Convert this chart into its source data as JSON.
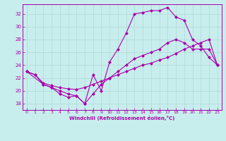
{
  "xlabel": "Windchill (Refroidissement éolien,°C)",
  "xlim": [
    -0.5,
    23.5
  ],
  "ylim": [
    17.0,
    33.5
  ],
  "xticks": [
    0,
    1,
    2,
    3,
    4,
    5,
    6,
    7,
    8,
    9,
    10,
    11,
    12,
    13,
    14,
    15,
    16,
    17,
    18,
    19,
    20,
    21,
    22,
    23
  ],
  "yticks": [
    18,
    20,
    22,
    24,
    26,
    28,
    30,
    32
  ],
  "bg_color": "#c8eded",
  "line_color": "#aa00aa",
  "grid_color": "#b0d8d8",
  "line1_x": [
    0,
    1,
    2,
    3,
    4,
    5,
    6,
    7,
    8,
    9,
    10,
    11,
    12,
    13,
    14,
    15,
    16,
    17,
    18,
    19,
    20,
    21,
    22,
    23
  ],
  "line1_y": [
    23.0,
    22.5,
    21.0,
    20.5,
    19.5,
    19.0,
    19.2,
    18.0,
    22.5,
    20.0,
    24.5,
    26.5,
    29.0,
    32.0,
    32.2,
    32.5,
    32.5,
    33.0,
    31.5,
    31.0,
    28.0,
    27.0,
    25.2,
    24.0
  ],
  "line2_x": [
    0,
    2,
    3,
    4,
    5,
    6,
    7,
    8,
    9,
    10,
    11,
    12,
    13,
    14,
    15,
    16,
    17,
    18,
    19,
    20,
    21,
    22,
    23
  ],
  "line2_y": [
    23.0,
    21.0,
    20.5,
    20.0,
    19.5,
    19.2,
    18.0,
    19.5,
    21.0,
    22.0,
    23.0,
    24.0,
    25.0,
    25.5,
    26.0,
    26.5,
    27.5,
    28.0,
    27.5,
    26.5,
    26.5,
    26.5,
    24.0
  ],
  "line3_x": [
    0,
    1,
    2,
    3,
    4,
    5,
    6,
    7,
    8,
    9,
    10,
    11,
    12,
    13,
    14,
    15,
    16,
    17,
    18,
    19,
    20,
    21,
    22,
    23
  ],
  "line3_y": [
    23.0,
    22.5,
    21.2,
    20.8,
    20.5,
    20.3,
    20.2,
    20.5,
    21.0,
    21.5,
    22.0,
    22.5,
    23.0,
    23.5,
    24.0,
    24.3,
    24.8,
    25.2,
    25.8,
    26.5,
    27.0,
    27.5,
    28.0,
    24.0
  ]
}
